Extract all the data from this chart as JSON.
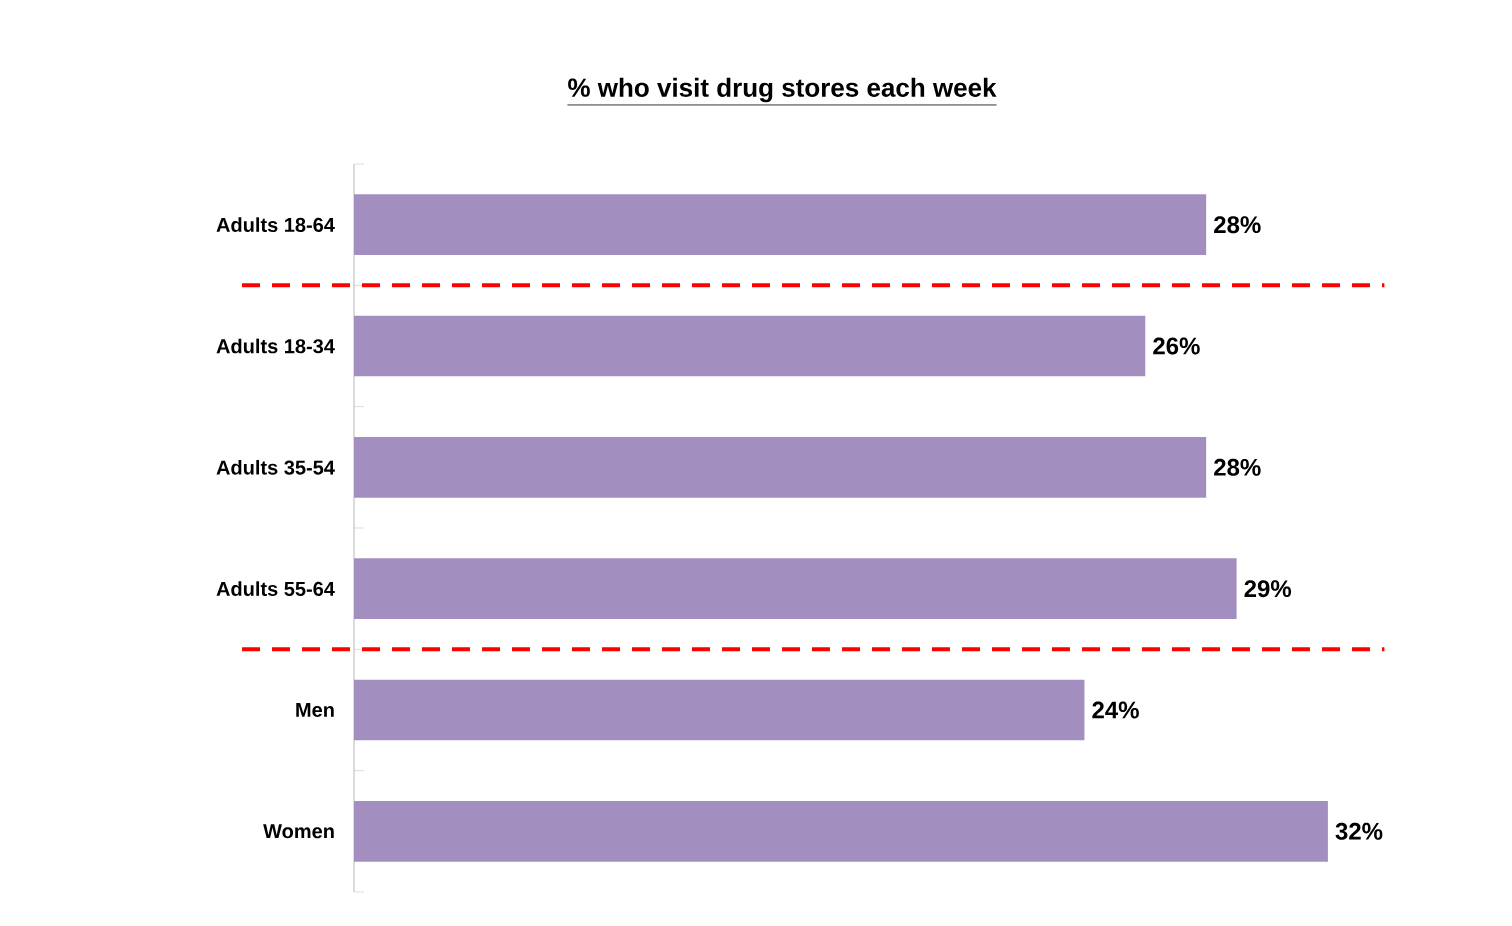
{
  "chart_data": {
    "type": "bar",
    "orientation": "horizontal",
    "title": "% who visit drug stores each week",
    "categories": [
      "Adults 18-64",
      "Adults 18-34",
      "Adults 35-54",
      "Adults 55-64",
      "Men",
      "Women"
    ],
    "values": [
      28,
      26,
      28,
      29,
      24,
      32
    ],
    "value_labels": [
      "28%",
      "26%",
      "28%",
      "29%",
      "24%",
      "32%"
    ],
    "color": "#a38fbf"
  }
}
